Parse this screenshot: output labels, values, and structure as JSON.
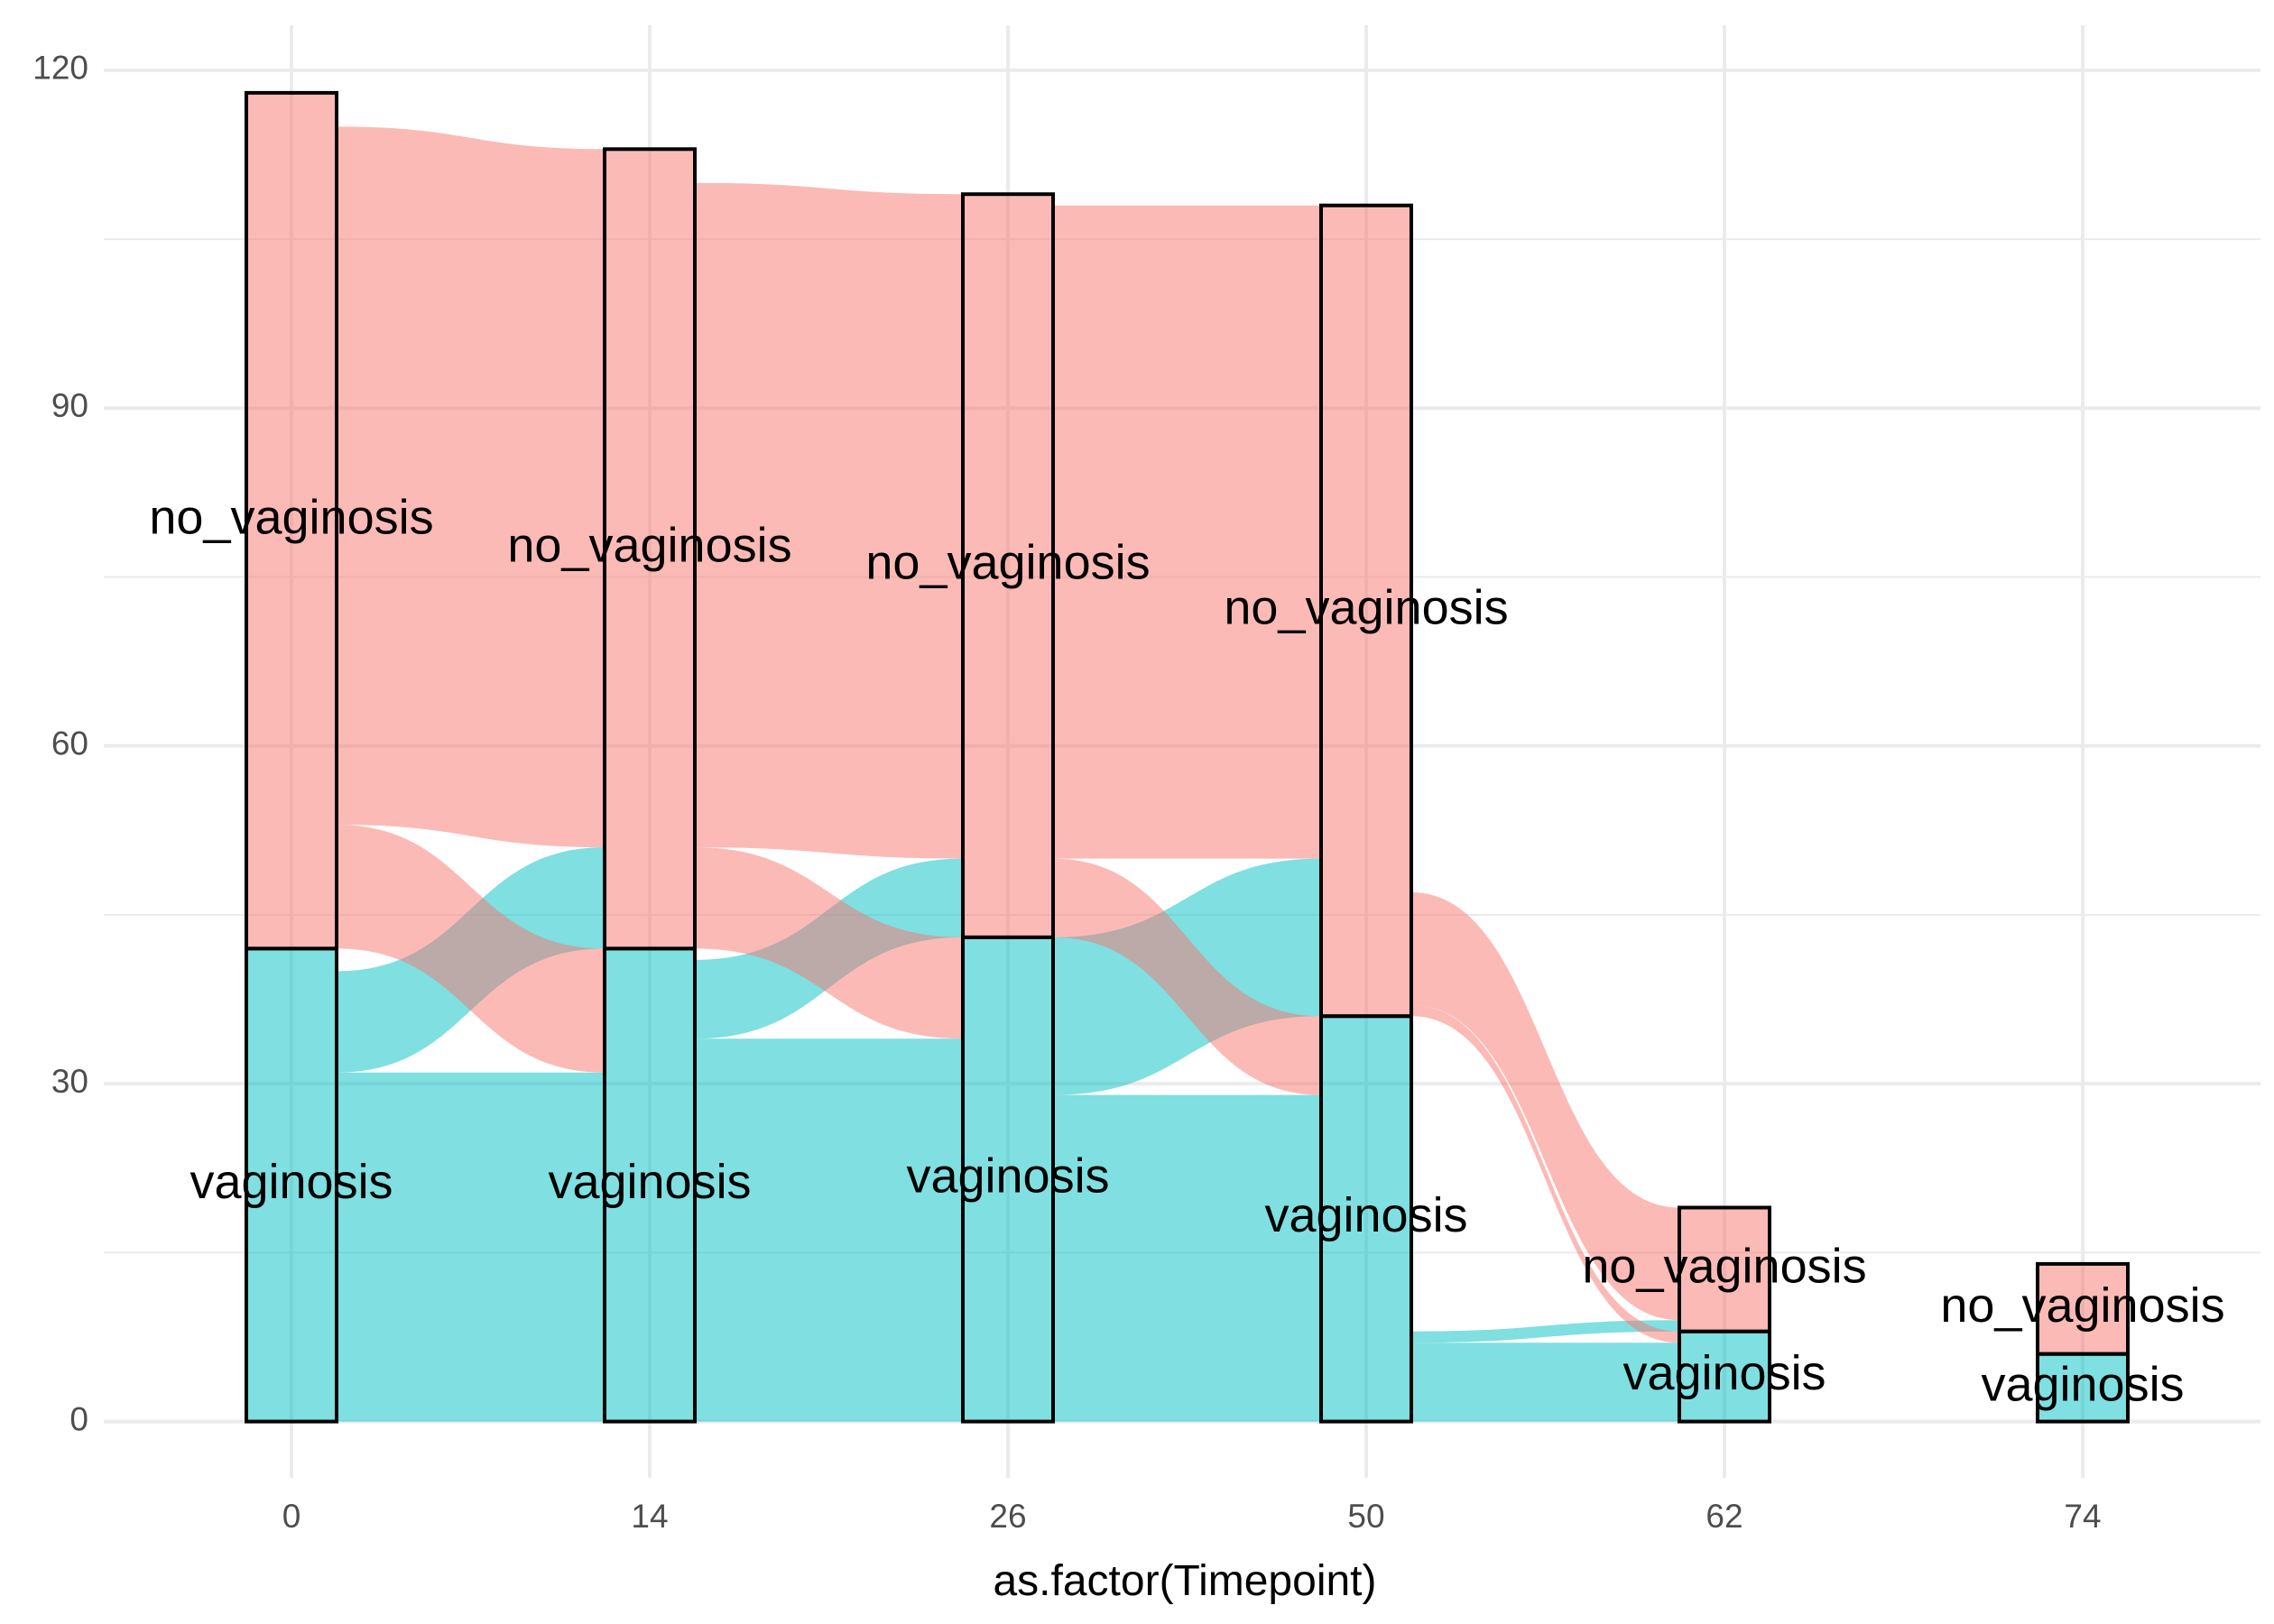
{
  "chart_data": {
    "type": "alluvial",
    "xlabel": "as.factor(Timepoint)",
    "ylabel": "",
    "title": "",
    "ylim": [
      -5,
      124
    ],
    "yticks": [
      0,
      30,
      60,
      90,
      120
    ],
    "grid": true,
    "categories": [
      "0",
      "14",
      "26",
      "50",
      "62",
      "74"
    ],
    "strata_order": [
      "no_vaginosis",
      "vaginosis"
    ],
    "colors": {
      "no_vaginosis": "#F8766D",
      "vaginosis": "#00BFC4"
    },
    "strata": [
      {
        "x": "0",
        "vaginosis": 42,
        "no_vaginosis": 76
      },
      {
        "x": "14",
        "vaginosis": 42,
        "no_vaginosis": 71
      },
      {
        "x": "26",
        "vaginosis": 43,
        "no_vaginosis": 66
      },
      {
        "x": "50",
        "vaginosis": 36,
        "no_vaginosis": 72
      },
      {
        "x": "62",
        "vaginosis": 8,
        "no_vaginosis": 11
      },
      {
        "x": "74",
        "vaginosis": 6,
        "no_vaginosis": 8
      }
    ],
    "flows": [
      {
        "from_x": "0",
        "to_x": "14",
        "from": "vaginosis",
        "to": "vaginosis",
        "value": 31
      },
      {
        "from_x": "0",
        "to_x": "14",
        "from": "vaginosis",
        "to": "no_vaginosis",
        "value": 9
      },
      {
        "from_x": "0",
        "to_x": "14",
        "from": "no_vaginosis",
        "to": "vaginosis",
        "value": 11
      },
      {
        "from_x": "0",
        "to_x": "14",
        "from": "no_vaginosis",
        "to": "no_vaginosis",
        "value": 62
      },
      {
        "from_x": "14",
        "to_x": "26",
        "from": "vaginosis",
        "to": "vaginosis",
        "value": 34
      },
      {
        "from_x": "14",
        "to_x": "26",
        "from": "vaginosis",
        "to": "no_vaginosis",
        "value": 7
      },
      {
        "from_x": "14",
        "to_x": "26",
        "from": "no_vaginosis",
        "to": "vaginosis",
        "value": 9
      },
      {
        "from_x": "14",
        "to_x": "26",
        "from": "no_vaginosis",
        "to": "no_vaginosis",
        "value": 59
      },
      {
        "from_x": "26",
        "to_x": "50",
        "from": "vaginosis",
        "to": "vaginosis",
        "value": 29
      },
      {
        "from_x": "26",
        "to_x": "50",
        "from": "vaginosis",
        "to": "no_vaginosis",
        "value": 14
      },
      {
        "from_x": "26",
        "to_x": "50",
        "from": "no_vaginosis",
        "to": "vaginosis",
        "value": 7
      },
      {
        "from_x": "26",
        "to_x": "50",
        "from": "no_vaginosis",
        "to": "no_vaginosis",
        "value": 58
      },
      {
        "from_x": "50",
        "to_x": "62",
        "from": "vaginosis",
        "to": "vaginosis",
        "value": 7
      },
      {
        "from_x": "50",
        "to_x": "62",
        "from": "vaginosis",
        "to": "no_vaginosis",
        "value": 1
      },
      {
        "from_x": "50",
        "to_x": "62",
        "from": "no_vaginosis",
        "to": "vaginosis",
        "value": 1
      },
      {
        "from_x": "50",
        "to_x": "62",
        "from": "no_vaginosis",
        "to": "no_vaginosis",
        "value": 10
      }
    ]
  }
}
